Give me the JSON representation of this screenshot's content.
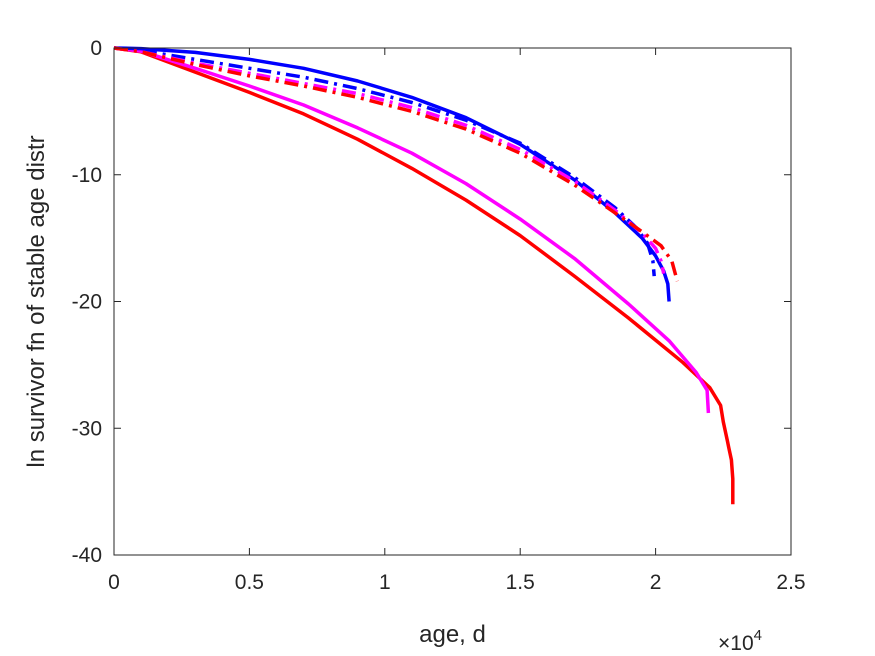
{
  "chart_data": {
    "type": "line",
    "xlabel": "age, d",
    "ylabel": "ln survivor fn of stable age distr",
    "xlim": [
      0,
      25000
    ],
    "ylim": [
      -40,
      0
    ],
    "xticks": [
      0,
      5000,
      10000,
      15000,
      20000,
      25000
    ],
    "xtick_labels": [
      "0",
      "0.5",
      "1",
      "1.5",
      "2",
      "2.5"
    ],
    "yticks": [
      0,
      -10,
      -20,
      -30,
      -40
    ],
    "ytick_labels": [
      "0",
      "-10",
      "-20",
      "-30",
      "-40"
    ],
    "x_exponent_base": "×10",
    "x_exponent_power": "4",
    "grid": false,
    "series": [
      {
        "color": "#ff0000",
        "style": "solid",
        "x": [
          0,
          1000,
          3000,
          5000,
          7000,
          9000,
          11000,
          13000,
          15000,
          17000,
          19000,
          21000,
          22000,
          22400,
          22500,
          22650,
          22700,
          22800,
          22850,
          22850
        ],
        "y": [
          0,
          -0.3,
          -1.9,
          -3.5,
          -5.2,
          -7.2,
          -9.5,
          -12.0,
          -14.8,
          -18.0,
          -21.3,
          -24.8,
          -26.8,
          -28.2,
          -29.5,
          -31.0,
          -31.5,
          -32.5,
          -34.0,
          -36.0
        ]
      },
      {
        "color": "#ff00ff",
        "style": "solid",
        "x": [
          0,
          1000,
          3000,
          5000,
          7000,
          9000,
          11000,
          13000,
          15000,
          17000,
          19000,
          20500,
          21500,
          21900,
          21950
        ],
        "y": [
          0,
          -0.25,
          -1.6,
          -3.0,
          -4.5,
          -6.3,
          -8.3,
          -10.7,
          -13.5,
          -16.6,
          -20.2,
          -23.1,
          -25.6,
          -27.0,
          -28.8
        ]
      },
      {
        "color": "#0000ff",
        "style": "solid",
        "x": [
          0,
          1000,
          3000,
          5000,
          7000,
          9000,
          11000,
          13000,
          15000,
          17000,
          18500,
          19500,
          20000,
          20300,
          20450,
          20500
        ],
        "y": [
          0,
          -0.05,
          -0.35,
          -0.9,
          -1.6,
          -2.6,
          -3.9,
          -5.5,
          -7.6,
          -10.4,
          -13.0,
          -15.0,
          -16.4,
          -17.6,
          -18.6,
          -20.0
        ]
      },
      {
        "color": "#0000ff",
        "style": "dashdot",
        "x": [
          0,
          1000,
          3000,
          5000,
          7000,
          9000,
          11000,
          13000,
          15000,
          17000,
          18500,
          19300,
          19700,
          19900,
          19950
        ],
        "y": [
          0,
          -0.2,
          -0.9,
          -1.6,
          -2.3,
          -3.2,
          -4.3,
          -5.7,
          -7.5,
          -10.2,
          -12.6,
          -14.2,
          -15.4,
          -16.8,
          -18.0
        ]
      },
      {
        "color": "#ff00ff",
        "style": "dashdot",
        "x": [
          0,
          1000,
          3000,
          5000,
          7000,
          9000,
          11000,
          13000,
          15000,
          17000,
          18500,
          19500,
          20000,
          20200,
          20300
        ],
        "y": [
          0,
          -0.3,
          -1.2,
          -2.0,
          -2.8,
          -3.6,
          -4.7,
          -6.1,
          -8.0,
          -10.5,
          -12.8,
          -14.6,
          -15.8,
          -16.8,
          -17.8
        ]
      },
      {
        "color": "#ff0000",
        "style": "dashdot",
        "x": [
          0,
          1000,
          3000,
          5000,
          7000,
          9000,
          11000,
          13000,
          15000,
          17000,
          18500,
          19500,
          20200,
          20600,
          20800
        ],
        "y": [
          0,
          -0.3,
          -1.3,
          -2.2,
          -3.0,
          -3.9,
          -5.0,
          -6.4,
          -8.3,
          -10.8,
          -13.0,
          -14.5,
          -15.6,
          -16.8,
          -18.4
        ]
      }
    ]
  }
}
